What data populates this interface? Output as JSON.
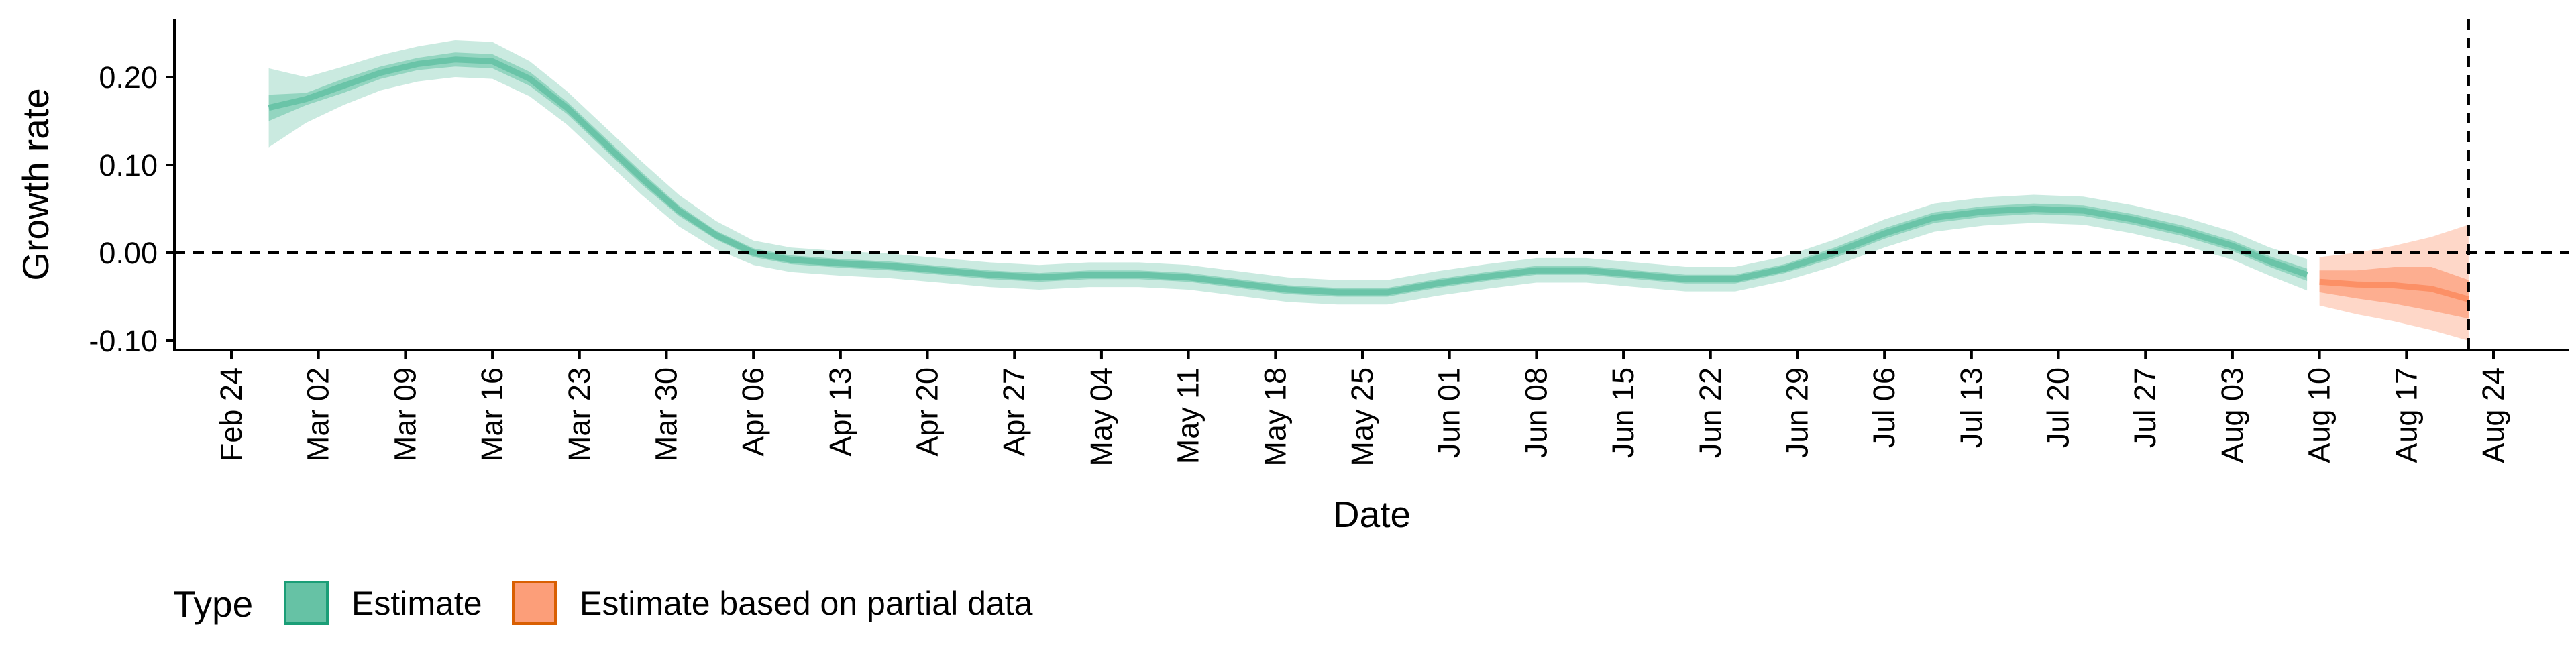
{
  "chart_data": {
    "type": "area",
    "title": "",
    "xlabel": "Date",
    "ylabel": "Growth rate",
    "x_type": "date",
    "x_tick_labels": [
      "Feb 24",
      "Mar 02",
      "Mar 09",
      "Mar 16",
      "Mar 23",
      "Mar 30",
      "Apr 06",
      "Apr 13",
      "Apr 20",
      "Apr 27",
      "May 04",
      "May 11",
      "May 18",
      "May 25",
      "Jun 01",
      "Jun 08",
      "Jun 15",
      "Jun 22",
      "Jun 29",
      "Jul 06",
      "Jul 13",
      "Jul 20",
      "Jul 27",
      "Aug 03",
      "Aug 10",
      "Aug 17",
      "Aug 24"
    ],
    "x_tick_dates": [
      "2020-02-24",
      "2020-03-02",
      "2020-03-09",
      "2020-03-16",
      "2020-03-23",
      "2020-03-30",
      "2020-04-06",
      "2020-04-13",
      "2020-04-20",
      "2020-04-27",
      "2020-05-04",
      "2020-05-11",
      "2020-05-18",
      "2020-05-25",
      "2020-06-01",
      "2020-06-08",
      "2020-06-15",
      "2020-06-22",
      "2020-06-29",
      "2020-07-06",
      "2020-07-13",
      "2020-07-20",
      "2020-07-27",
      "2020-08-03",
      "2020-08-10",
      "2020-08-17",
      "2020-08-24"
    ],
    "y_ticks": [
      0.2,
      0.1,
      0.0,
      -0.1
    ],
    "y_tick_labels": [
      "0.20",
      "0.10",
      "0.00",
      "-0.10"
    ],
    "ylim": [
      -0.112,
      0.265
    ],
    "xlim": [
      "2020-02-18",
      "2020-08-31"
    ],
    "grid": false,
    "hline": 0,
    "vline": "2020-08-22",
    "legend": {
      "title": "Type",
      "position": "bottom-left",
      "items": [
        {
          "label": "Estimate",
          "color": "#66C2A5"
        },
        {
          "label": "Estimate based on partial data",
          "color": "#FC8D62"
        }
      ]
    },
    "series": [
      {
        "name": "Estimate",
        "color": "#66C2A5",
        "dates": [
          "2020-02-27",
          "2020-03-01",
          "2020-03-04",
          "2020-03-07",
          "2020-03-10",
          "2020-03-13",
          "2020-03-16",
          "2020-03-19",
          "2020-03-22",
          "2020-03-25",
          "2020-03-28",
          "2020-03-31",
          "2020-04-03",
          "2020-04-06",
          "2020-04-09",
          "2020-04-13",
          "2020-04-17",
          "2020-04-21",
          "2020-04-25",
          "2020-04-29",
          "2020-05-03",
          "2020-05-07",
          "2020-05-11",
          "2020-05-15",
          "2020-05-19",
          "2020-05-23",
          "2020-05-27",
          "2020-05-31",
          "2020-06-04",
          "2020-06-08",
          "2020-06-12",
          "2020-06-16",
          "2020-06-20",
          "2020-06-24",
          "2020-06-28",
          "2020-07-02",
          "2020-07-06",
          "2020-07-10",
          "2020-07-14",
          "2020-07-18",
          "2020-07-22",
          "2020-07-26",
          "2020-07-30",
          "2020-08-03",
          "2020-08-06",
          "2020-08-09"
        ],
        "median": [
          0.165,
          0.175,
          0.19,
          0.205,
          0.215,
          0.22,
          0.218,
          0.198,
          0.165,
          0.125,
          0.085,
          0.048,
          0.02,
          0.0,
          -0.008,
          -0.012,
          -0.015,
          -0.02,
          -0.025,
          -0.028,
          -0.025,
          -0.025,
          -0.028,
          -0.035,
          -0.042,
          -0.045,
          -0.045,
          -0.035,
          -0.027,
          -0.02,
          -0.02,
          -0.025,
          -0.03,
          -0.03,
          -0.018,
          0.0,
          0.022,
          0.04,
          0.047,
          0.05,
          0.048,
          0.038,
          0.025,
          0.008,
          -0.01,
          -0.025
        ],
        "inner_lower": [
          0.15,
          0.168,
          0.182,
          0.198,
          0.208,
          0.212,
          0.21,
          0.19,
          0.158,
          0.118,
          0.078,
          0.042,
          0.015,
          -0.005,
          -0.013,
          -0.017,
          -0.02,
          -0.025,
          -0.03,
          -0.033,
          -0.03,
          -0.03,
          -0.033,
          -0.04,
          -0.047,
          -0.05,
          -0.05,
          -0.04,
          -0.032,
          -0.025,
          -0.025,
          -0.03,
          -0.035,
          -0.035,
          -0.023,
          -0.006,
          0.016,
          0.034,
          0.041,
          0.044,
          0.042,
          0.032,
          0.019,
          0.002,
          -0.016,
          -0.032
        ],
        "inner_upper": [
          0.18,
          0.182,
          0.198,
          0.212,
          0.222,
          0.228,
          0.226,
          0.206,
          0.172,
          0.132,
          0.092,
          0.054,
          0.025,
          0.005,
          -0.003,
          -0.007,
          -0.01,
          -0.015,
          -0.02,
          -0.023,
          -0.02,
          -0.02,
          -0.023,
          -0.03,
          -0.037,
          -0.04,
          -0.04,
          -0.03,
          -0.022,
          -0.015,
          -0.015,
          -0.02,
          -0.025,
          -0.025,
          -0.013,
          0.006,
          0.028,
          0.046,
          0.053,
          0.056,
          0.054,
          0.044,
          0.031,
          0.014,
          -0.004,
          -0.018
        ],
        "outer_lower": [
          0.12,
          0.148,
          0.168,
          0.185,
          0.195,
          0.2,
          0.198,
          0.178,
          0.146,
          0.106,
          0.066,
          0.03,
          0.004,
          -0.014,
          -0.022,
          -0.026,
          -0.029,
          -0.034,
          -0.039,
          -0.042,
          -0.039,
          -0.039,
          -0.042,
          -0.049,
          -0.056,
          -0.059,
          -0.059,
          -0.049,
          -0.041,
          -0.034,
          -0.034,
          -0.039,
          -0.044,
          -0.044,
          -0.032,
          -0.015,
          0.006,
          0.024,
          0.031,
          0.034,
          0.032,
          0.022,
          0.009,
          -0.008,
          -0.026,
          -0.043
        ],
        "outer_upper": [
          0.21,
          0.2,
          0.212,
          0.225,
          0.235,
          0.242,
          0.24,
          0.218,
          0.184,
          0.144,
          0.104,
          0.066,
          0.036,
          0.014,
          0.006,
          0.002,
          -0.001,
          -0.006,
          -0.011,
          -0.014,
          -0.011,
          -0.011,
          -0.014,
          -0.021,
          -0.028,
          -0.031,
          -0.031,
          -0.021,
          -0.013,
          -0.006,
          -0.006,
          -0.011,
          -0.016,
          -0.016,
          -0.004,
          0.015,
          0.038,
          0.056,
          0.063,
          0.066,
          0.064,
          0.054,
          0.041,
          0.024,
          0.006,
          -0.007
        ]
      },
      {
        "name": "Estimate based on partial data",
        "color": "#FC8D62",
        "dates": [
          "2020-08-10",
          "2020-08-13",
          "2020-08-16",
          "2020-08-19",
          "2020-08-22"
        ],
        "median": [
          -0.033,
          -0.036,
          -0.037,
          -0.041,
          -0.053
        ],
        "inner_lower": [
          -0.045,
          -0.052,
          -0.058,
          -0.066,
          -0.075
        ],
        "inner_upper": [
          -0.02,
          -0.02,
          -0.016,
          -0.016,
          -0.031
        ],
        "outer_lower": [
          -0.06,
          -0.07,
          -0.078,
          -0.088,
          -0.1
        ],
        "outer_upper": [
          -0.005,
          0.0,
          0.008,
          0.018,
          0.032
        ]
      }
    ]
  }
}
